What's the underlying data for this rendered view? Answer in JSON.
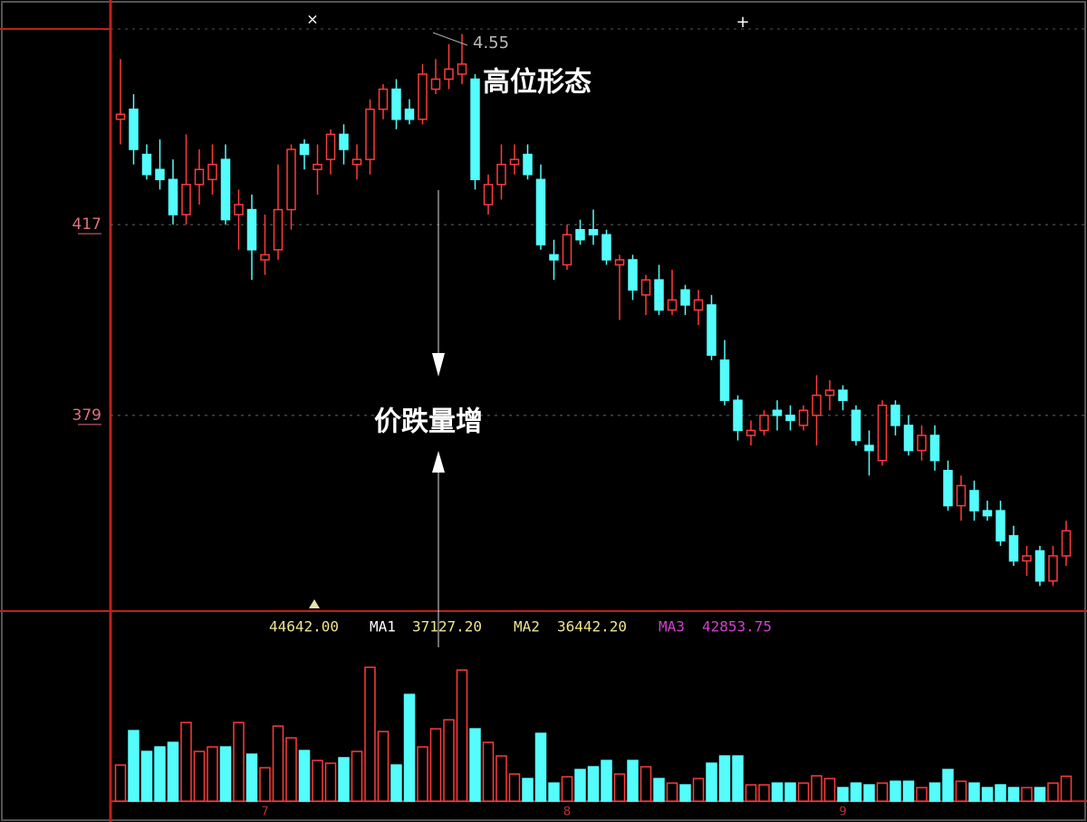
{
  "chart_data": {
    "type": "candlestick",
    "categories": [
      null,
      null,
      null,
      null,
      null,
      null,
      null,
      null,
      null,
      null,
      null,
      "7",
      null,
      null,
      null,
      null,
      null,
      null,
      null,
      null,
      null,
      null,
      null,
      null,
      null,
      null,
      null,
      null,
      null,
      null,
      null,
      null,
      null,
      null,
      "8",
      null,
      null,
      null,
      null,
      null,
      null,
      null,
      null,
      null,
      null,
      null,
      null,
      null,
      null,
      null,
      null,
      null,
      null,
      null,
      null,
      "9",
      null,
      null,
      null,
      null,
      null,
      null,
      null,
      null,
      null,
      null,
      null,
      null,
      null,
      null,
      null,
      null,
      null
    ],
    "open": [
      4.38,
      4.4,
      4.31,
      4.28,
      4.26,
      4.19,
      4.25,
      4.26,
      4.3,
      4.19,
      4.2,
      4.1,
      4.12,
      4.2,
      4.33,
      4.28,
      4.3,
      4.35,
      4.29,
      4.3,
      4.4,
      4.44,
      4.4,
      4.38,
      4.44,
      4.46,
      4.47,
      4.46,
      4.21,
      4.25,
      4.29,
      4.31,
      4.26,
      4.11,
      4.09,
      4.16,
      4.16,
      4.15,
      4.09,
      4.1,
      4.03,
      4.06,
      4.0,
      4.04,
      4.0,
      4.01,
      3.9,
      3.82,
      3.75,
      3.76,
      3.8,
      3.79,
      3.77,
      3.79,
      3.83,
      3.84,
      3.8,
      3.73,
      3.7,
      3.81,
      3.77,
      3.72,
      3.75,
      3.68,
      3.61,
      3.64,
      3.6,
      3.6,
      3.55,
      3.5,
      3.52,
      3.46,
      3.51
    ],
    "high": [
      4.5,
      4.43,
      4.33,
      4.34,
      4.3,
      4.35,
      4.32,
      4.33,
      4.33,
      4.24,
      4.23,
      4.19,
      4.29,
      4.33,
      4.34,
      4.33,
      4.36,
      4.37,
      4.33,
      4.42,
      4.45,
      4.46,
      4.42,
      4.49,
      4.5,
      4.53,
      4.55,
      4.47,
      4.27,
      4.33,
      4.33,
      4.33,
      4.29,
      4.14,
      4.17,
      4.18,
      4.2,
      4.16,
      4.11,
      4.11,
      4.07,
      4.09,
      4.08,
      4.05,
      4.04,
      4.03,
      3.94,
      3.83,
      3.78,
      3.8,
      3.82,
      3.81,
      3.81,
      3.87,
      3.86,
      3.85,
      3.81,
      3.76,
      3.82,
      3.82,
      3.79,
      3.77,
      3.77,
      3.7,
      3.67,
      3.66,
      3.62,
      3.62,
      3.57,
      3.53,
      3.53,
      3.53,
      3.58
    ],
    "low": [
      4.33,
      4.29,
      4.26,
      4.24,
      4.17,
      4.17,
      4.21,
      4.23,
      4.17,
      4.12,
      4.06,
      4.07,
      4.1,
      4.16,
      4.28,
      4.23,
      4.27,
      4.29,
      4.26,
      4.27,
      4.38,
      4.36,
      4.37,
      4.37,
      4.43,
      4.44,
      4.45,
      4.24,
      4.19,
      4.22,
      4.27,
      4.26,
      4.12,
      4.06,
      4.08,
      4.13,
      4.13,
      4.09,
      3.98,
      4.02,
      3.99,
      3.99,
      3.99,
      3.99,
      3.97,
      3.9,
      3.81,
      3.74,
      3.73,
      3.75,
      3.76,
      3.76,
      3.76,
      3.73,
      3.8,
      3.8,
      3.73,
      3.67,
      3.69,
      3.75,
      3.71,
      3.7,
      3.68,
      3.6,
      3.58,
      3.58,
      3.58,
      3.53,
      3.49,
      3.47,
      3.45,
      3.45,
      3.49
    ],
    "close": [
      4.39,
      4.32,
      4.27,
      4.26,
      4.19,
      4.25,
      4.28,
      4.29,
      4.18,
      4.21,
      4.12,
      4.11,
      4.2,
      4.32,
      4.31,
      4.29,
      4.35,
      4.32,
      4.3,
      4.4,
      4.44,
      4.38,
      4.38,
      4.47,
      4.46,
      4.48,
      4.49,
      4.26,
      4.25,
      4.29,
      4.3,
      4.27,
      4.13,
      4.1,
      4.15,
      4.14,
      4.15,
      4.1,
      4.1,
      4.04,
      4.06,
      4.0,
      4.02,
      4.01,
      4.02,
      3.91,
      3.82,
      3.76,
      3.76,
      3.79,
      3.79,
      3.78,
      3.8,
      3.83,
      3.84,
      3.82,
      3.74,
      3.72,
      3.81,
      3.77,
      3.72,
      3.75,
      3.7,
      3.61,
      3.65,
      3.6,
      3.59,
      3.54,
      3.5,
      3.51,
      3.46,
      3.51,
      3.56
    ],
    "volume": [
      64800,
      126400,
      89100,
      97200,
      105300,
      140900,
      89100,
      97200,
      97200,
      140900,
      84200,
      59900,
      134500,
      113400,
      90700,
      72900,
      68000,
      77800,
      89100,
      239800,
      124700,
      64800,
      191200,
      97200,
      129600,
      145800,
      234900,
      129600,
      105300,
      81000,
      48600,
      40500,
      121500,
      32400,
      43700,
      56700,
      61600,
      72900,
      48600,
      72900,
      61600,
      40500,
      32400,
      29200,
      40500,
      68000,
      81000,
      81000,
      29200,
      29200,
      32400,
      32400,
      32400,
      45400,
      40500,
      24300,
      32400,
      29200,
      32400,
      35600,
      35600,
      24300,
      32400,
      56700,
      35600,
      32400,
      24300,
      29200,
      24300,
      24300,
      24300,
      32400,
      44642
    ],
    "up_color": "#ff3b3b",
    "down_color": "#54fcfc",
    "ylim": [
      3.4,
      4.56
    ],
    "yticks": [
      {
        "value": 4.17,
        "label": "417"
      },
      {
        "value": 3.79,
        "label": "379"
      }
    ],
    "volume_ylim": [
      0,
      300000
    ],
    "grid": true,
    "peak_label": "4.55",
    "annotations": [
      "高位形态",
      "价跌量增"
    ],
    "volume_legend": [
      {
        "text": "44642.00",
        "color": "#f0e68c"
      },
      {
        "text": "MA1",
        "color": "#ffffff"
      },
      {
        "text": "37127.20",
        "color": "#f0e68c"
      },
      {
        "text": "MA2",
        "color": "#f0e68c"
      },
      {
        "text": "36442.20",
        "color": "#f0e68c"
      },
      {
        "text": "MA3",
        "color": "#d040d0"
      },
      {
        "text": "42853.75",
        "color": "#d040d0"
      }
    ]
  }
}
